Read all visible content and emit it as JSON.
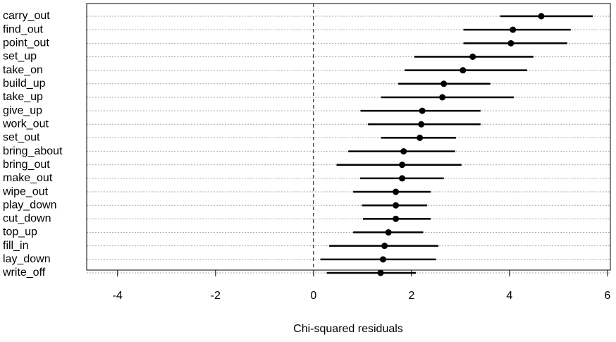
{
  "chart_data": {
    "type": "dotinterval",
    "x_label": "Chi-squared residuals",
    "categories": [
      "carry_out",
      "find_out",
      "point_out",
      "set_up",
      "take_on",
      "build_up",
      "take_up",
      "give_up",
      "work_out",
      "set_out",
      "bring_about",
      "bring_out",
      "make_out",
      "wipe_out",
      "play_down",
      "cut_down",
      "top_up",
      "fill_in",
      "lay_down",
      "write_off"
    ],
    "values": [
      4.65,
      4.07,
      4.03,
      3.25,
      3.05,
      2.66,
      2.63,
      2.22,
      2.2,
      2.17,
      1.84,
      1.81,
      1.81,
      1.68,
      1.68,
      1.68,
      1.53,
      1.45,
      1.42,
      1.37
    ],
    "lower": [
      3.81,
      3.06,
      3.06,
      2.06,
      1.86,
      1.73,
      1.38,
      0.96,
      1.11,
      1.38,
      0.71,
      0.47,
      0.95,
      0.81,
      0.99,
      1.01,
      0.81,
      0.32,
      0.14,
      0.27
    ],
    "upper": [
      5.7,
      5.25,
      5.18,
      4.49,
      4.36,
      3.61,
      4.09,
      3.41,
      3.41,
      2.91,
      2.89,
      3.02,
      2.66,
      2.39,
      2.32,
      2.39,
      2.24,
      2.55,
      2.5,
      2.09
    ],
    "color": "#000000",
    "xlim": [
      -4.63,
      6.06
    ],
    "xticks": [
      -4,
      -2,
      0,
      2,
      4,
      6
    ],
    "reference_line": 0,
    "grid": true
  }
}
